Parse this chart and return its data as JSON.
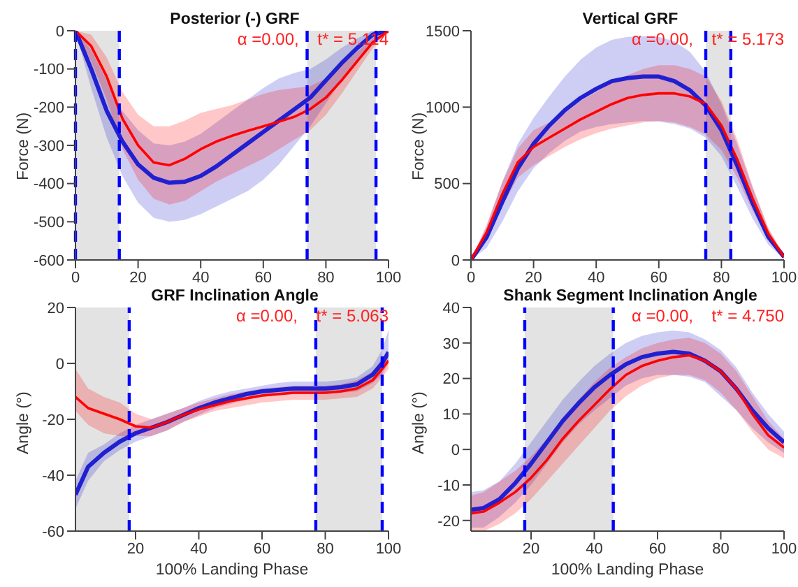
{
  "chart_data": [
    {
      "type": "line",
      "title": "Posterior (-) GRF",
      "ylabel": "Force (N)",
      "annotations": [
        "α =0.00,    t* = 5.114"
      ],
      "x": [
        0,
        5,
        10,
        15,
        20,
        25,
        30,
        35,
        40,
        45,
        50,
        55,
        60,
        65,
        70,
        75,
        80,
        85,
        90,
        95,
        100
      ],
      "xlim": [
        0,
        100
      ],
      "xticks": [
        0,
        20,
        40,
        60,
        80,
        100
      ],
      "ylim": [
        -600,
        0
      ],
      "yticks": [
        -600,
        -500,
        -400,
        -300,
        -200,
        -100,
        0
      ],
      "marker": "none",
      "series": [
        {
          "color": "#2020d0",
          "values": [
            0,
            -100,
            -210,
            -290,
            -350,
            -385,
            -398,
            -395,
            -380,
            -355,
            -325,
            -295,
            -265,
            -235,
            -205,
            -175,
            -130,
            -85,
            -45,
            -10,
            0
          ],
          "lower": [
            0,
            -150,
            -280,
            -380,
            -450,
            -490,
            -500,
            -495,
            -480,
            -460,
            -440,
            -420,
            -390,
            -350,
            -300,
            -250,
            -190,
            -130,
            -75,
            -30,
            0
          ],
          "upper": [
            0,
            -50,
            -130,
            -210,
            -260,
            -295,
            -300,
            -290,
            -270,
            -240,
            -210,
            -180,
            -150,
            -125,
            -110,
            -100,
            -75,
            -45,
            -20,
            0,
            0
          ]
        },
        {
          "color": "#ff0000",
          "values": [
            0,
            -40,
            -120,
            -230,
            -300,
            -345,
            -352,
            -335,
            -310,
            -290,
            -275,
            -262,
            -250,
            -238,
            -225,
            -205,
            -175,
            -130,
            -80,
            -30,
            0
          ],
          "lower": [
            0,
            -80,
            -180,
            -310,
            -390,
            -440,
            -455,
            -445,
            -420,
            -395,
            -375,
            -355,
            -335,
            -310,
            -285,
            -260,
            -220,
            -165,
            -105,
            -45,
            0
          ],
          "upper": [
            0,
            -10,
            -70,
            -160,
            -220,
            -250,
            -250,
            -235,
            -215,
            -205,
            -195,
            -180,
            -165,
            -155,
            -150,
            -145,
            -125,
            -90,
            -55,
            -20,
            0
          ]
        }
      ],
      "bands": [
        {
          "axis": "x",
          "from": 0,
          "to": 14,
          "color": "#e3e3e3"
        },
        {
          "axis": "x",
          "from": 74,
          "to": 96,
          "color": "#e3e3e3"
        }
      ],
      "ref_lines": [
        {
          "axis": "x",
          "value": 0,
          "color": "#0000ff",
          "line_style": "dashed"
        },
        {
          "axis": "x",
          "value": 14,
          "color": "#0000ff",
          "line_style": "dashed"
        },
        {
          "axis": "x",
          "value": 74,
          "color": "#0000ff",
          "line_style": "dashed"
        },
        {
          "axis": "x",
          "value": 96,
          "color": "#0000ff",
          "line_style": "dashed"
        }
      ]
    },
    {
      "type": "line",
      "title": "Vertical GRF",
      "ylabel": "Force (N)",
      "annotations": [
        "α =0.00,    t* = 5.173"
      ],
      "x": [
        0,
        5,
        10,
        15,
        20,
        25,
        30,
        35,
        40,
        45,
        50,
        55,
        60,
        65,
        70,
        75,
        80,
        85,
        90,
        95,
        100
      ],
      "xlim": [
        0,
        100
      ],
      "xticks": [
        0,
        20,
        40,
        60,
        80,
        100
      ],
      "ylim": [
        0,
        1500
      ],
      "yticks": [
        0,
        500,
        1000,
        1500
      ],
      "marker": "none",
      "series": [
        {
          "color": "#2020d0",
          "values": [
            0,
            150,
            380,
            600,
            760,
            880,
            980,
            1060,
            1120,
            1170,
            1190,
            1200,
            1200,
            1170,
            1110,
            1010,
            850,
            620,
            370,
            150,
            20
          ],
          "lower": [
            0,
            80,
            250,
            450,
            600,
            700,
            780,
            840,
            870,
            890,
            900,
            910,
            905,
            890,
            860,
            800,
            680,
            480,
            270,
            100,
            5
          ],
          "upper": [
            0,
            220,
            510,
            760,
            930,
            1070,
            1200,
            1310,
            1390,
            1440,
            1460,
            1465,
            1460,
            1430,
            1360,
            1230,
            1020,
            760,
            470,
            200,
            30
          ]
        },
        {
          "color": "#ff0000",
          "values": [
            0,
            180,
            430,
            640,
            740,
            800,
            860,
            920,
            970,
            1020,
            1060,
            1080,
            1090,
            1090,
            1070,
            1020,
            880,
            660,
            400,
            170,
            20
          ],
          "lower": [
            0,
            130,
            350,
            540,
            620,
            680,
            740,
            790,
            830,
            860,
            880,
            900,
            910,
            900,
            870,
            820,
            720,
            540,
            320,
            130,
            10
          ],
          "upper": [
            0,
            230,
            510,
            730,
            850,
            900,
            960,
            1040,
            1100,
            1160,
            1210,
            1250,
            1275,
            1275,
            1250,
            1200,
            1040,
            790,
            480,
            210,
            30
          ]
        }
      ],
      "bands": [
        {
          "axis": "x",
          "from": 75,
          "to": 83,
          "color": "#e3e3e3"
        }
      ],
      "ref_lines": [
        {
          "axis": "x",
          "value": 75,
          "color": "#0000ff",
          "line_style": "dashed"
        },
        {
          "axis": "x",
          "value": 83,
          "color": "#0000ff",
          "line_style": "dashed"
        }
      ]
    },
    {
      "type": "line",
      "title": "GRF Inclination Angle",
      "xlabel": "100% Landing Phase",
      "ylabel": "Angle (°)",
      "annotations": [
        "α =0.00,    t* = 5.063"
      ],
      "x": [
        1,
        5,
        10,
        15,
        20,
        25,
        30,
        35,
        40,
        45,
        50,
        55,
        60,
        65,
        70,
        75,
        80,
        85,
        90,
        95,
        98,
        100
      ],
      "xlim": [
        1,
        100
      ],
      "xticks": [
        20,
        40,
        60,
        80,
        100
      ],
      "ylim": [
        -60,
        20
      ],
      "yticks": [
        -60,
        -40,
        -20,
        0,
        20
      ],
      "marker": "none",
      "series": [
        {
          "color": "#2020d0",
          "values": [
            -47,
            -37,
            -32,
            -28,
            -25,
            -23,
            -21,
            -18.5,
            -16,
            -14,
            -12.5,
            -11,
            -10,
            -9.5,
            -9,
            -9,
            -9,
            -8.5,
            -7.5,
            -4,
            0,
            4
          ],
          "lower": [
            -52,
            -42,
            -35,
            -31,
            -28,
            -26,
            -24,
            -21,
            -18.5,
            -16,
            -14.5,
            -13,
            -12,
            -11.5,
            -11,
            -11,
            -11,
            -10.5,
            -10,
            -7,
            -4,
            0
          ],
          "upper": [
            -42,
            -32,
            -29,
            -25,
            -22,
            -20,
            -18,
            -16,
            -13.5,
            -11.5,
            -10,
            -9,
            -8,
            -7,
            -6.5,
            -6.5,
            -6.5,
            -6,
            -5,
            -1,
            5,
            12
          ]
        },
        {
          "color": "#ff0000",
          "values": [
            -12,
            -16,
            -18,
            -20,
            -22.5,
            -23,
            -21,
            -18.5,
            -16.5,
            -15,
            -13.5,
            -12.5,
            -11.5,
            -11,
            -10.5,
            -10.5,
            -10.5,
            -10,
            -9,
            -6,
            -2,
            1
          ],
          "lower": [
            -17,
            -22,
            -25,
            -26,
            -26,
            -26,
            -24,
            -21,
            -19,
            -17,
            -16,
            -15,
            -14,
            -13.5,
            -13,
            -13,
            -13,
            -12.5,
            -12,
            -9,
            -5,
            -2
          ],
          "upper": [
            -2,
            -9,
            -12,
            -14,
            -18,
            -20,
            -18,
            -16,
            -14,
            -12.5,
            -11,
            -10,
            -9,
            -8.5,
            -8,
            -8,
            -8,
            -7.5,
            -6,
            -3,
            2,
            4
          ]
        }
      ],
      "bands": [
        {
          "axis": "x",
          "from": 1,
          "to": 18,
          "color": "#e3e3e3"
        },
        {
          "axis": "x",
          "from": 77,
          "to": 98,
          "color": "#e3e3e3"
        }
      ],
      "ref_lines": [
        {
          "axis": "x",
          "value": 18,
          "color": "#0000ff",
          "line_style": "dashed"
        },
        {
          "axis": "x",
          "value": 77,
          "color": "#0000ff",
          "line_style": "dashed"
        },
        {
          "axis": "x",
          "value": 98,
          "color": "#0000ff",
          "line_style": "dashed"
        }
      ]
    },
    {
      "type": "line",
      "title": "Shank Segment Inclination Angle",
      "xlabel": "100% Landing Phase",
      "ylabel": "Angle (°)",
      "annotations": [
        "α =0.00,    t* = 4.750"
      ],
      "x": [
        1,
        5,
        10,
        15,
        20,
        25,
        30,
        35,
        40,
        45,
        50,
        55,
        60,
        65,
        70,
        75,
        80,
        85,
        90,
        95,
        100
      ],
      "xlim": [
        1,
        100
      ],
      "xticks": [
        20,
        40,
        60,
        80,
        100
      ],
      "ylim": [
        -23,
        40
      ],
      "yticks": [
        -20,
        -10,
        0,
        10,
        20,
        30,
        40
      ],
      "marker": "none",
      "series": [
        {
          "color": "#2020d0",
          "values": [
            -17,
            -16.5,
            -14,
            -9.5,
            -4,
            2,
            8,
            13,
            17.5,
            21,
            24,
            26,
            27,
            27.5,
            27,
            25,
            22,
            17,
            11,
            6,
            2
          ],
          "lower": [
            -22,
            -22,
            -19,
            -15,
            -10,
            -4,
            2,
            7,
            11,
            14.5,
            18,
            20,
            21,
            21,
            20.5,
            19,
            15,
            11,
            6,
            2,
            -1
          ],
          "upper": [
            -12,
            -11.5,
            -9,
            -4,
            2,
            8,
            14,
            19,
            23.5,
            27,
            30,
            32,
            33,
            33.5,
            33,
            31,
            28,
            23,
            16,
            10,
            5
          ]
        },
        {
          "color": "#ff0000",
          "values": [
            -18,
            -17.5,
            -15,
            -12,
            -8,
            -3,
            3,
            8,
            12.5,
            17,
            21,
            23.5,
            25,
            26,
            26.5,
            25,
            22,
            17,
            10,
            4,
            0.5
          ],
          "lower": [
            -23,
            -23,
            -21,
            -18,
            -14,
            -9,
            -4,
            1,
            6,
            11,
            15,
            18,
            20,
            21,
            21,
            19.5,
            16,
            11,
            5,
            0,
            -2.5
          ],
          "upper": [
            -13,
            -12,
            -9,
            -6,
            -2,
            3,
            9,
            14,
            19,
            23,
            26,
            28.5,
            30,
            31,
            31.5,
            30,
            27,
            22,
            15,
            8,
            3
          ]
        }
      ],
      "bands": [
        {
          "axis": "x",
          "from": 18,
          "to": 46,
          "color": "#e3e3e3"
        }
      ],
      "ref_lines": [
        {
          "axis": "x",
          "value": 18,
          "color": "#0000ff",
          "line_style": "dashed"
        },
        {
          "axis": "x",
          "value": 46,
          "color": "#0000ff",
          "line_style": "dashed"
        }
      ]
    }
  ]
}
